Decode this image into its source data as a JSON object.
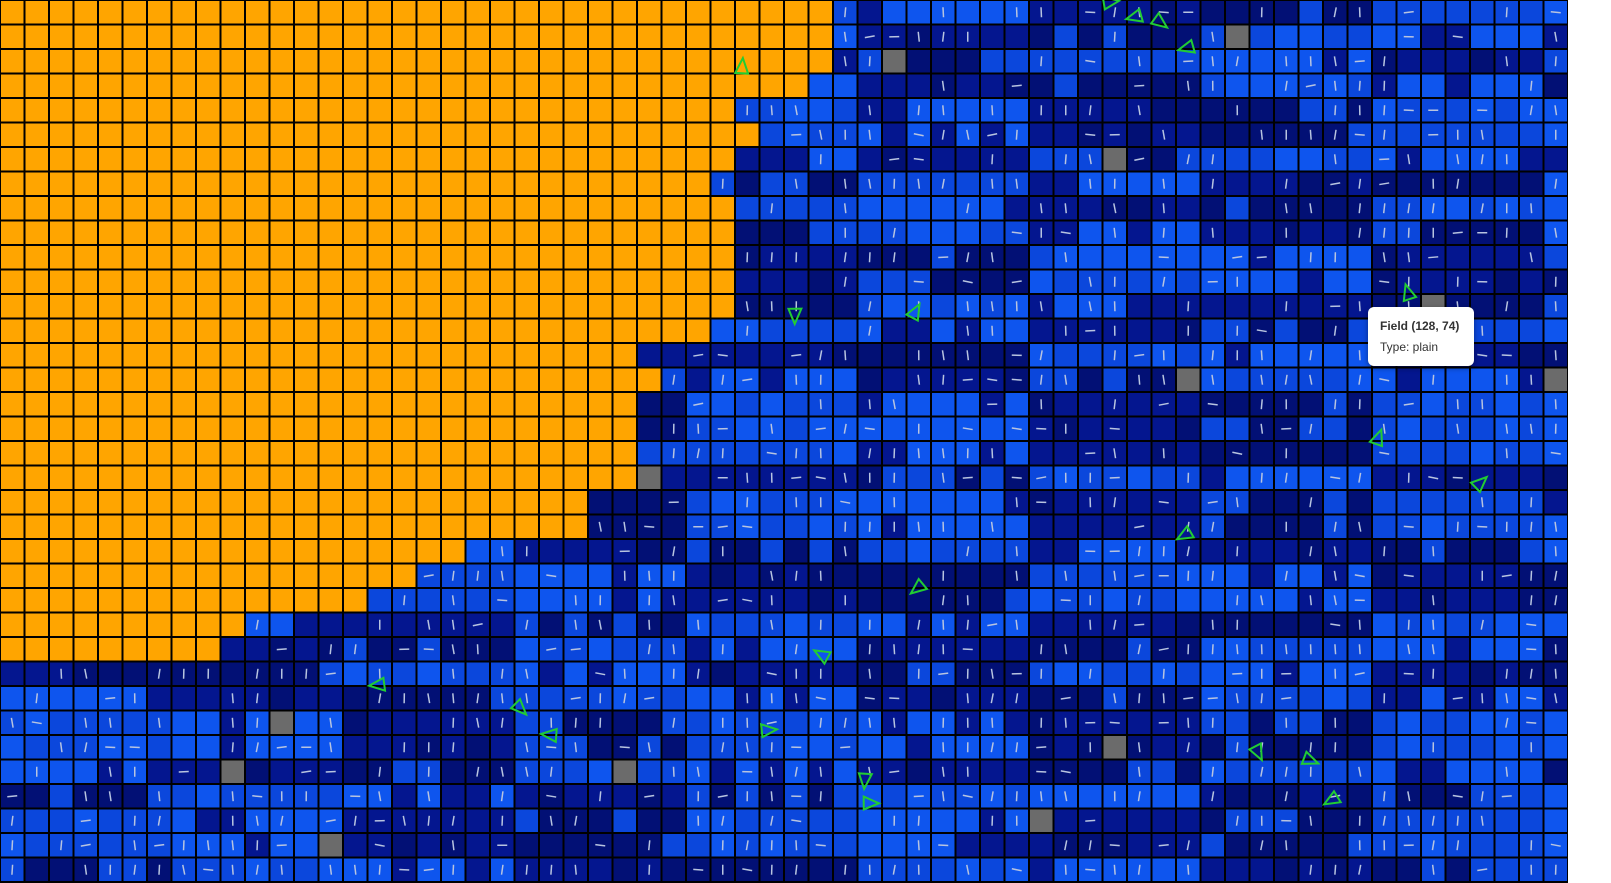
{
  "tooltip": {
    "title": "Field (128, 74)",
    "type": "Type: plain"
  }
}
